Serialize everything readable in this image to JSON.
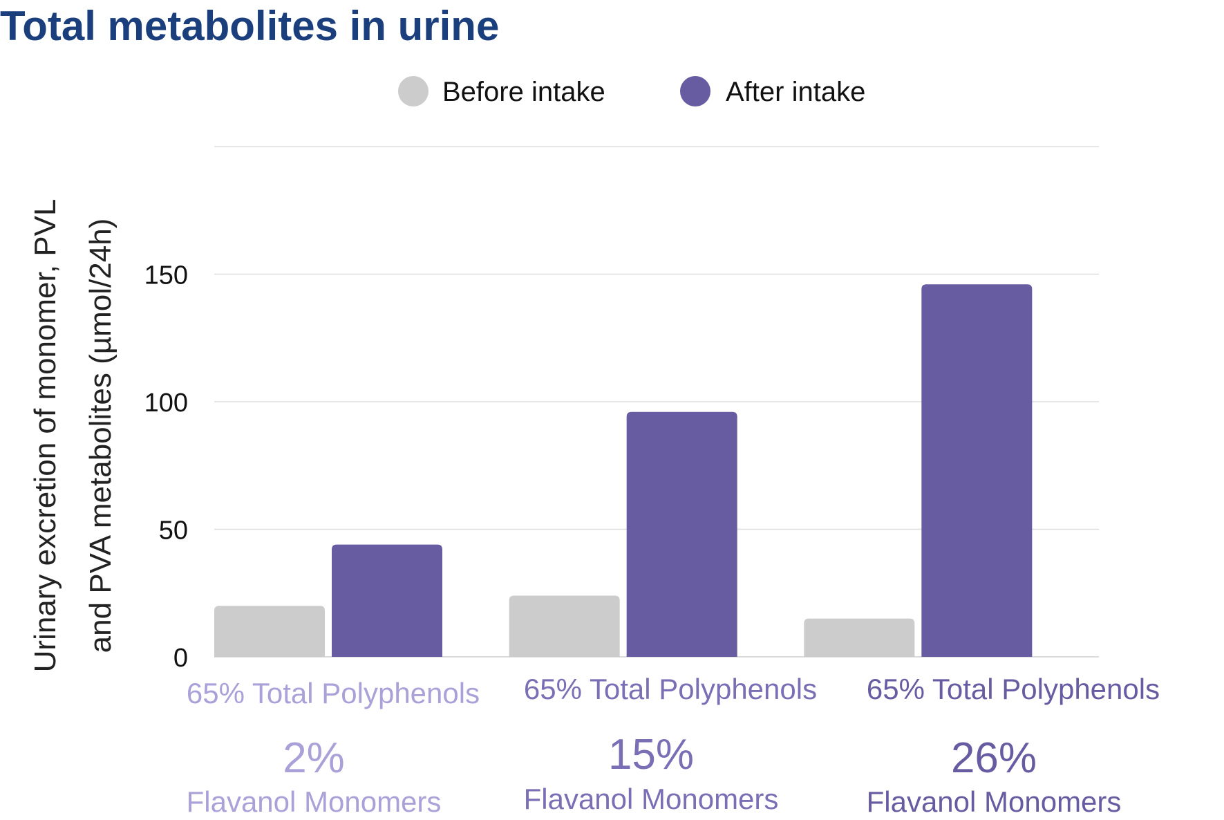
{
  "chart_data": {
    "type": "bar",
    "title": "Total metabolites in urine",
    "ylabel_lines": [
      "Urinary excretion of monomer, PVL",
      "and PVA metabolites (µmol/24h)"
    ],
    "xlabel": "",
    "ylim": [
      0,
      200
    ],
    "yticks": [
      0,
      50,
      100,
      150
    ],
    "grid": true,
    "legend_position": "top-center",
    "categories": [
      {
        "line1": "65% Total Polyphenols",
        "percent": "2%",
        "line3": "Flavanol Monomers"
      },
      {
        "line1": "65% Total Polyphenols",
        "percent": "15%",
        "line3": "Flavanol Monomers"
      },
      {
        "line1": "65% Total Polyphenols",
        "percent": "26%",
        "line3": "Flavanol Monomers"
      }
    ],
    "series": [
      {
        "name": "Before intake",
        "values": [
          20,
          24,
          15
        ]
      },
      {
        "name": "After intake",
        "values": [
          44,
          96,
          146
        ]
      }
    ]
  },
  "colors": {
    "title": "#1b3f7c",
    "before": "#cccccc",
    "after": "#675ba1",
    "label_light": "#aaa1d9",
    "label_mid": "#7a6fb5",
    "label_dark": "#675ba1",
    "grid": "#dddddd",
    "text": "#111111",
    "axis_label": "#222222"
  }
}
